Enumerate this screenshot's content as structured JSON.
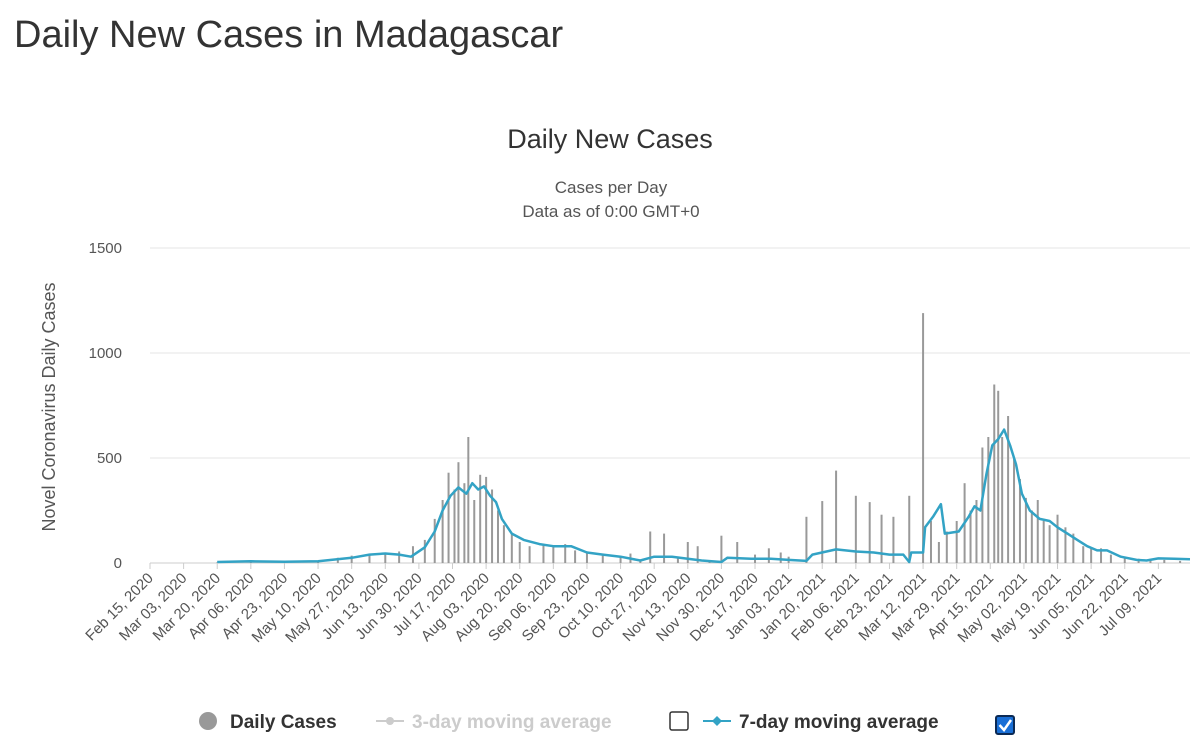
{
  "page": {
    "title": "Daily New Cases in Madagascar"
  },
  "chart_data": {
    "type": "bar",
    "title": "Daily New Cases",
    "subtitle": [
      "Cases per Day",
      "Data as of 0:00 GMT+0"
    ],
    "ylabel": "Novel Coronavirus Daily Cases",
    "xlabel": "",
    "ylim": [
      0,
      1500
    ],
    "y_ticks": [
      0,
      500,
      1000,
      1500
    ],
    "grid": true,
    "legend_position": "bottom-center",
    "x_date_range": [
      "2020-02-15",
      "2021-07-25"
    ],
    "x_tick_labels": [
      "Feb 15, 2020",
      "Mar 03, 2020",
      "Mar 20, 2020",
      "Apr 06, 2020",
      "Apr 23, 2020",
      "May 10, 2020",
      "May 27, 2020",
      "Jun 13, 2020",
      "Jun 30, 2020",
      "Jul 17, 2020",
      "Aug 03, 2020",
      "Aug 20, 2020",
      "Sep 06, 2020",
      "Sep 23, 2020",
      "Oct 10, 2020",
      "Oct 27, 2020",
      "Nov 13, 2020",
      "Nov 30, 2020",
      "Dec 17, 2020",
      "Jan 03, 2021",
      "Jan 20, 2021",
      "Feb 06, 2021",
      "Feb 23, 2021",
      "Mar 12, 2021",
      "Mar 29, 2021",
      "Apr 15, 2021",
      "May 02, 2021",
      "May 19, 2021",
      "Jun 05, 2021",
      "Jun 22, 2021",
      "Jul 09, 2021"
    ],
    "series": [
      {
        "name": "Daily Cases",
        "kind": "bar",
        "color": "#999999",
        "points": [
          [
            "2020-03-20",
            3
          ],
          [
            "2020-04-06",
            5
          ],
          [
            "2020-04-23",
            6
          ],
          [
            "2020-05-10",
            10
          ],
          [
            "2020-05-20",
            25
          ],
          [
            "2020-05-27",
            35
          ],
          [
            "2020-06-05",
            40
          ],
          [
            "2020-06-13",
            45
          ],
          [
            "2020-06-20",
            55
          ],
          [
            "2020-06-27",
            80
          ],
          [
            "2020-07-03",
            110
          ],
          [
            "2020-07-08",
            210
          ],
          [
            "2020-07-12",
            300
          ],
          [
            "2020-07-15",
            430
          ],
          [
            "2020-07-18",
            350
          ],
          [
            "2020-07-20",
            480
          ],
          [
            "2020-07-23",
            380
          ],
          [
            "2020-07-25",
            600
          ],
          [
            "2020-07-28",
            300
          ],
          [
            "2020-07-31",
            420
          ],
          [
            "2020-08-03",
            410
          ],
          [
            "2020-08-06",
            350
          ],
          [
            "2020-08-09",
            250
          ],
          [
            "2020-08-12",
            180
          ],
          [
            "2020-08-16",
            140
          ],
          [
            "2020-08-20",
            100
          ],
          [
            "2020-08-25",
            80
          ],
          [
            "2020-09-01",
            90
          ],
          [
            "2020-09-06",
            80
          ],
          [
            "2020-09-12",
            90
          ],
          [
            "2020-09-17",
            60
          ],
          [
            "2020-09-23",
            50
          ],
          [
            "2020-10-01",
            40
          ],
          [
            "2020-10-10",
            30
          ],
          [
            "2020-10-15",
            45
          ],
          [
            "2020-10-20",
            10
          ],
          [
            "2020-10-25",
            150
          ],
          [
            "2020-11-01",
            140
          ],
          [
            "2020-11-08",
            30
          ],
          [
            "2020-11-13",
            100
          ],
          [
            "2020-11-18",
            80
          ],
          [
            "2020-11-24",
            10
          ],
          [
            "2020-11-30",
            130
          ],
          [
            "2020-12-08",
            100
          ],
          [
            "2020-12-17",
            40
          ],
          [
            "2020-12-24",
            70
          ],
          [
            "2020-12-30",
            50
          ],
          [
            "2021-01-03",
            30
          ],
          [
            "2021-01-12",
            220
          ],
          [
            "2021-01-20",
            295
          ],
          [
            "2021-01-27",
            440
          ],
          [
            "2021-02-06",
            320
          ],
          [
            "2021-02-13",
            290
          ],
          [
            "2021-02-19",
            230
          ],
          [
            "2021-02-25",
            220
          ],
          [
            "2021-03-05",
            320
          ],
          [
            "2021-03-12",
            1190
          ],
          [
            "2021-03-16",
            200
          ],
          [
            "2021-03-20",
            100
          ],
          [
            "2021-03-24",
            150
          ],
          [
            "2021-03-29",
            200
          ],
          [
            "2021-04-02",
            380
          ],
          [
            "2021-04-05",
            250
          ],
          [
            "2021-04-08",
            300
          ],
          [
            "2021-04-11",
            550
          ],
          [
            "2021-04-14",
            600
          ],
          [
            "2021-04-17",
            850
          ],
          [
            "2021-04-19",
            820
          ],
          [
            "2021-04-21",
            600
          ],
          [
            "2021-04-24",
            700
          ],
          [
            "2021-04-27",
            500
          ],
          [
            "2021-04-30",
            400
          ],
          [
            "2021-05-03",
            310
          ],
          [
            "2021-05-06",
            250
          ],
          [
            "2021-05-09",
            300
          ],
          [
            "2021-05-12",
            200
          ],
          [
            "2021-05-15",
            180
          ],
          [
            "2021-05-19",
            230
          ],
          [
            "2021-05-23",
            170
          ],
          [
            "2021-05-27",
            140
          ],
          [
            "2021-06-01",
            80
          ],
          [
            "2021-06-05",
            70
          ],
          [
            "2021-06-10",
            70
          ],
          [
            "2021-06-15",
            40
          ],
          [
            "2021-06-22",
            30
          ],
          [
            "2021-06-29",
            20
          ],
          [
            "2021-07-05",
            20
          ],
          [
            "2021-07-12",
            15
          ],
          [
            "2021-07-20",
            10
          ]
        ]
      },
      {
        "name": "3-day moving average",
        "kind": "line",
        "color": "#cccccc",
        "visible": false,
        "points": []
      },
      {
        "name": "7-day moving average",
        "kind": "line",
        "color": "#33a3c5",
        "visible": true,
        "points": [
          [
            "2020-03-20",
            5
          ],
          [
            "2020-04-06",
            8
          ],
          [
            "2020-04-23",
            6
          ],
          [
            "2020-05-10",
            8
          ],
          [
            "2020-05-27",
            25
          ],
          [
            "2020-06-05",
            40
          ],
          [
            "2020-06-13",
            45
          ],
          [
            "2020-06-20",
            40
          ],
          [
            "2020-06-26",
            30
          ],
          [
            "2020-07-03",
            75
          ],
          [
            "2020-07-08",
            150
          ],
          [
            "2020-07-12",
            250
          ],
          [
            "2020-07-16",
            320
          ],
          [
            "2020-07-20",
            360
          ],
          [
            "2020-07-24",
            330
          ],
          [
            "2020-07-27",
            380
          ],
          [
            "2020-07-30",
            350
          ],
          [
            "2020-08-02",
            365
          ],
          [
            "2020-08-05",
            320
          ],
          [
            "2020-08-08",
            290
          ],
          [
            "2020-08-11",
            210
          ],
          [
            "2020-08-16",
            140
          ],
          [
            "2020-08-22",
            110
          ],
          [
            "2020-08-30",
            90
          ],
          [
            "2020-09-06",
            80
          ],
          [
            "2020-09-15",
            80
          ],
          [
            "2020-09-23",
            50
          ],
          [
            "2020-10-01",
            40
          ],
          [
            "2020-10-10",
            30
          ],
          [
            "2020-10-20",
            12
          ],
          [
            "2020-10-27",
            30
          ],
          [
            "2020-11-05",
            30
          ],
          [
            "2020-11-13",
            20
          ],
          [
            "2020-11-20",
            12
          ],
          [
            "2020-11-30",
            5
          ],
          [
            "2020-12-03",
            25
          ],
          [
            "2020-12-15",
            20
          ],
          [
            "2020-12-25",
            20
          ],
          [
            "2021-01-03",
            15
          ],
          [
            "2021-01-12",
            10
          ],
          [
            "2021-01-15",
            40
          ],
          [
            "2021-01-27",
            65
          ],
          [
            "2021-02-06",
            55
          ],
          [
            "2021-02-15",
            50
          ],
          [
            "2021-02-23",
            40
          ],
          [
            "2021-03-02",
            40
          ],
          [
            "2021-03-05",
            5
          ],
          [
            "2021-03-06",
            50
          ],
          [
            "2021-03-12",
            50
          ],
          [
            "2021-03-13",
            170
          ],
          [
            "2021-03-17",
            220
          ],
          [
            "2021-03-21",
            280
          ],
          [
            "2021-03-23",
            140
          ],
          [
            "2021-03-30",
            150
          ],
          [
            "2021-04-04",
            220
          ],
          [
            "2021-04-07",
            270
          ],
          [
            "2021-04-10",
            250
          ],
          [
            "2021-04-13",
            420
          ],
          [
            "2021-04-16",
            560
          ],
          [
            "2021-04-19",
            590
          ],
          [
            "2021-04-22",
            635
          ],
          [
            "2021-04-25",
            560
          ],
          [
            "2021-04-28",
            470
          ],
          [
            "2021-05-01",
            330
          ],
          [
            "2021-05-05",
            250
          ],
          [
            "2021-05-10",
            210
          ],
          [
            "2021-05-15",
            200
          ],
          [
            "2021-05-19",
            170
          ],
          [
            "2021-05-24",
            140
          ],
          [
            "2021-05-29",
            110
          ],
          [
            "2021-06-03",
            80
          ],
          [
            "2021-06-08",
            60
          ],
          [
            "2021-06-13",
            60
          ],
          [
            "2021-06-20",
            30
          ],
          [
            "2021-06-28",
            15
          ],
          [
            "2021-07-03",
            12
          ],
          [
            "2021-07-09",
            22
          ],
          [
            "2021-07-17",
            20
          ],
          [
            "2021-07-25",
            18
          ]
        ]
      }
    ]
  },
  "legend": {
    "items": [
      {
        "label": "Daily Cases",
        "color": "#333333",
        "marker_color": "#999999",
        "checkbox": null
      },
      {
        "label": "3-day moving average",
        "color": "#cccccc",
        "marker_color": "#cccccc",
        "checkbox": false
      },
      {
        "label": "7-day moving average",
        "color": "#333333",
        "marker_color": "#33a3c5",
        "checkbox": true
      }
    ]
  }
}
